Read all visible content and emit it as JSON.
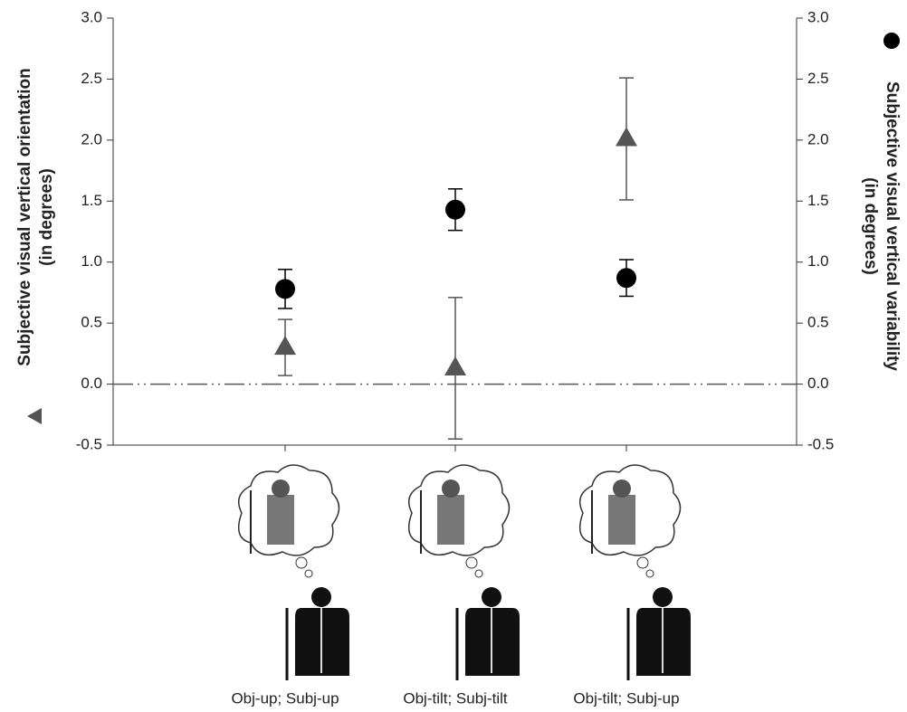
{
  "chart_data": {
    "type": "errorbar",
    "categories": [
      "Obj-up; Subj-up",
      "Obj-tilt; Subj-tilt",
      "Obj-tilt; Subj-up"
    ],
    "ylabel": [
      "Subjective visual vertical orientation",
      "(in degrees)"
    ],
    "y2label": [
      "Subjective visual vertical variability",
      "(in degrees)"
    ],
    "ylim": [
      -0.5,
      3.0
    ],
    "yticks": [
      -0.5,
      {
        "value": 0,
        "label": "0.0"
      },
      0.5,
      {
        "value": 1,
        "label": "1.0"
      },
      1.5,
      {
        "value": 2,
        "label": "2.0"
      },
      2.5,
      {
        "value": 3,
        "label": "3.0"
      }
    ],
    "y2lim": [
      -0.5,
      3.0
    ],
    "y2ticks": [
      -0.5,
      {
        "value": 0,
        "label": "0.0"
      },
      0.5,
      {
        "value": 1,
        "label": "1.0"
      },
      1.5,
      {
        "value": 2,
        "label": "2.0"
      },
      2.5,
      {
        "value": 3,
        "label": "3.0"
      }
    ],
    "reference_line": 0,
    "series": [
      {
        "marker": "triangle",
        "color": "#555555",
        "values": [
          0.3,
          0.13,
          2.01
        ],
        "errors": [
          0.23,
          0.58,
          0.5
        ]
      },
      {
        "marker": "circle",
        "color": "#000000",
        "axis": "y2",
        "values": [
          0.78,
          1.43,
          0.87
        ],
        "errors": [
          0.16,
          0.17,
          0.15
        ]
      }
    ]
  }
}
